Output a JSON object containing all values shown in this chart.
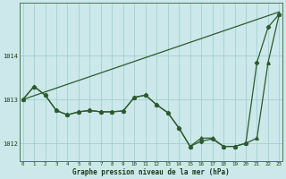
{
  "title": "Graphe pression niveau de la mer (hPa)",
  "background_color": "#cce8ea",
  "grid_color": "#99cccc",
  "line_color": "#2d5a2d",
  "series_diamond": {
    "x": [
      0,
      1,
      2,
      3,
      4,
      5,
      6,
      7,
      8,
      9,
      10,
      11,
      12,
      13,
      14,
      15,
      16,
      17,
      18,
      19,
      20,
      21,
      22,
      23
    ],
    "y": [
      1013.0,
      1013.3,
      1013.1,
      1012.75,
      1012.65,
      1012.72,
      1012.75,
      1012.72,
      1012.72,
      1012.74,
      1013.05,
      1013.1,
      1012.88,
      1012.7,
      1012.35,
      1011.93,
      1012.05,
      1012.1,
      1011.93,
      1011.93,
      1012.0,
      1013.85,
      1014.65,
      1014.95
    ]
  },
  "series_triangle": {
    "x": [
      0,
      1,
      2,
      3,
      4,
      5,
      6,
      7,
      8,
      9,
      10,
      11,
      12,
      13,
      14,
      15,
      16,
      17,
      18,
      19,
      20,
      21,
      22,
      23
    ],
    "y": [
      1013.0,
      1013.3,
      1013.1,
      1012.75,
      1012.65,
      1012.72,
      1012.75,
      1012.72,
      1012.72,
      1012.74,
      1013.05,
      1013.1,
      1012.88,
      1012.7,
      1012.35,
      1011.93,
      1012.12,
      1012.12,
      1011.93,
      1011.93,
      1012.0,
      1012.12,
      1013.85,
      1014.95
    ]
  },
  "series_straight": {
    "x": [
      0,
      23
    ],
    "y": [
      1013.0,
      1015.0
    ]
  },
  "ylim": [
    1011.6,
    1015.2
  ],
  "yticks": [
    1012,
    1013,
    1014
  ],
  "xlim": [
    -0.3,
    23.3
  ],
  "xticks": [
    0,
    1,
    2,
    3,
    4,
    5,
    6,
    7,
    8,
    9,
    10,
    11,
    12,
    13,
    14,
    15,
    16,
    17,
    18,
    19,
    20,
    21,
    22,
    23
  ]
}
